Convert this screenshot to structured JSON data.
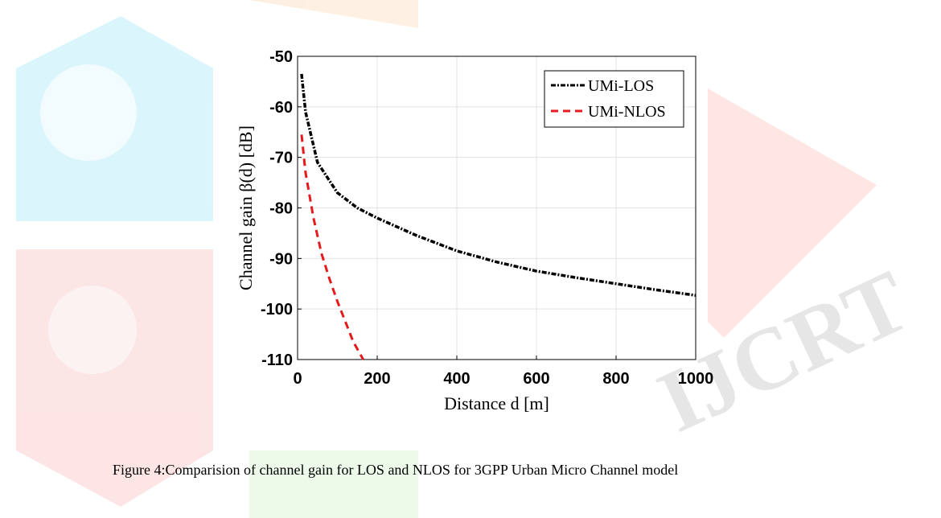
{
  "chart_data": {
    "type": "line",
    "xlabel": "Distance d [m]",
    "ylabel": "Channel gain β(d) [dB]",
    "xlim": [
      0,
      1000
    ],
    "xticks": [
      0,
      200,
      400,
      600,
      800,
      1000
    ],
    "ylim": [
      -110,
      -50
    ],
    "yticks": [
      -110,
      -100,
      -90,
      -80,
      -70,
      -60,
      -50
    ],
    "grid": true,
    "legend": "upper right",
    "series": [
      {
        "name": "UMi-LOS",
        "color": "#000000",
        "x": [
          10,
          20,
          50,
          100,
          150,
          200,
          300,
          400,
          500,
          600,
          700,
          800,
          900,
          1000
        ],
        "values": [
          -53.5,
          -61,
          -71,
          -77,
          -80,
          -82,
          -85.5,
          -88.5,
          -90.7,
          -92.5,
          -93.8,
          -95,
          -96.2,
          -97.3
        ]
      },
      {
        "name": "UMi-NLOS",
        "color": "#e41a1c",
        "x": [
          10,
          20,
          40,
          60,
          80,
          100,
          120,
          140,
          165
        ],
        "values": [
          -65.5,
          -73,
          -82,
          -89,
          -94,
          -98.5,
          -102.5,
          -106.5,
          -110
        ]
      }
    ]
  },
  "caption": "Figure 4:Comparision of channel gain for LOS and NLOS for 3GPP Urban Micro Channel model",
  "watermark": "IJCRT"
}
